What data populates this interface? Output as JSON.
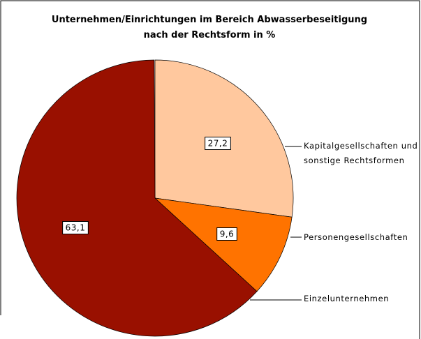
{
  "chart_data": {
    "type": "pie",
    "title": "Unternehmen/Einrichtungen im Bereich Abwasserbeseitigung\nnach der Rechtsform in %",
    "categories": [
      "Kapitalgesellschaften und sonstige Rechtsformen",
      "Personengesellschaften",
      "Einzelunternehmen"
    ],
    "values": [
      27.2,
      9.6,
      63.1
    ],
    "value_labels": [
      "27,2",
      "9,6",
      "63,1"
    ],
    "colors": [
      "#ffc89e",
      "#ff7300",
      "#991000"
    ]
  }
}
